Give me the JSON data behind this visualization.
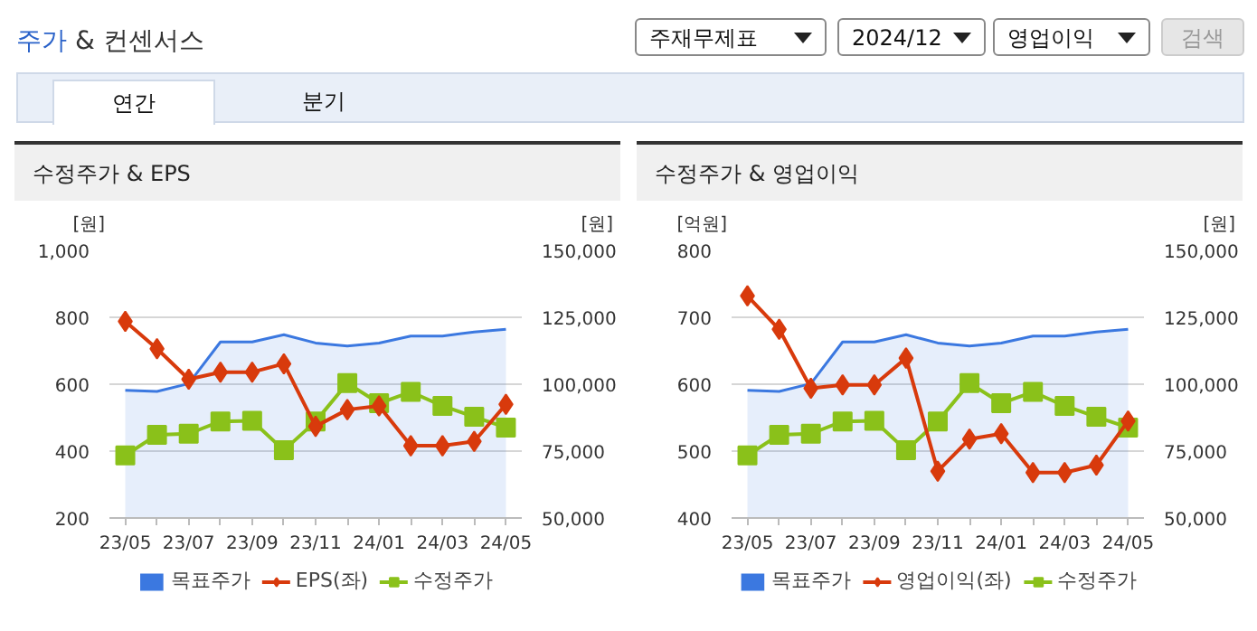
{
  "chart_data": [
    {
      "type": "other",
      "title": "주가 & 컨센서스",
      "annotations": [
        "주재무제표",
        "2024/12",
        "영업이익",
        "검색",
        "연간",
        "분기"
      ]
    },
    {
      "type": "line",
      "title": "수정주가 & EPS",
      "ylabel": "[원]",
      "y2label": "[원]",
      "categories": [
        "23/05",
        null,
        "23/07",
        null,
        "23/09",
        null,
        "23/11",
        null,
        "24/01",
        null,
        "24/03",
        null,
        "24/05"
      ],
      "ylim": [
        200,
        1000
      ],
      "yticks": [
        200,
        400,
        600,
        800,
        {
          "value": 1000,
          "label": "1,000"
        }
      ],
      "y2lim": [
        50000,
        150000
      ],
      "y2ticks": [
        {
          "value": 50000,
          "label": "50,000"
        },
        {
          "value": 75000,
          "label": "75,000"
        },
        {
          "value": 100000,
          "label": "100,000"
        },
        {
          "value": 125000,
          "label": "125,000"
        },
        {
          "value": 150000,
          "label": "150,000"
        }
      ],
      "grid": "y",
      "legend": "bottom",
      "series": [
        {
          "name": "목표주가",
          "type": "area",
          "axis": "y2",
          "color": "#3b78e0",
          "values": [
            97700,
            97300,
            100200,
            115800,
            115800,
            118500,
            115400,
            114300,
            115400,
            118000,
            118000,
            119500,
            120500
          ]
        },
        {
          "name": "EPS(좌)",
          "type": "line",
          "marker": "diamond",
          "color": "#d83a0c",
          "values": [
            788,
            706,
            615,
            636,
            636,
            661,
            474,
            524,
            535,
            416,
            416,
            429,
            540
          ]
        },
        {
          "name": "수정주가",
          "type": "line",
          "axis": "y2",
          "marker": "square",
          "color": "#8ac11a",
          "values": [
            73400,
            81100,
            81500,
            86100,
            86300,
            75300,
            86100,
            100400,
            92900,
            97100,
            91900,
            87800,
            83800
          ]
        }
      ]
    },
    {
      "type": "line",
      "title": "수정주가 & 영업이익",
      "ylabel": "[억원]",
      "y2label": "[원]",
      "categories": [
        "23/05",
        null,
        "23/07",
        null,
        "23/09",
        null,
        "23/11",
        null,
        "24/01",
        null,
        "24/03",
        null,
        "24/05"
      ],
      "ylim": [
        400,
        800
      ],
      "yticks": [
        400,
        500,
        600,
        700,
        800
      ],
      "y2lim": [
        50000,
        150000
      ],
      "y2ticks": [
        {
          "value": 50000,
          "label": "50,000"
        },
        {
          "value": 75000,
          "label": "75,000"
        },
        {
          "value": 100000,
          "label": "100,000"
        },
        {
          "value": 125000,
          "label": "125,000"
        },
        {
          "value": 150000,
          "label": "150,000"
        }
      ],
      "grid": "y",
      "legend": "bottom",
      "series": [
        {
          "name": "목표주가",
          "type": "area",
          "axis": "y2",
          "color": "#3b78e0",
          "values": [
            97700,
            97300,
            100200,
            115800,
            115800,
            118500,
            115400,
            114300,
            115400,
            118000,
            118000,
            119500,
            120500
          ]
        },
        {
          "name": "영업이익(좌)",
          "type": "line",
          "marker": "diamond",
          "color": "#d83a0c",
          "values": [
            732,
            682,
            594,
            599,
            599,
            639,
            470,
            518,
            526,
            468,
            468,
            479,
            545
          ]
        },
        {
          "name": "수정주가",
          "type": "line",
          "axis": "y2",
          "marker": "square",
          "color": "#8ac11a",
          "values": [
            73400,
            81100,
            81500,
            86100,
            86300,
            75300,
            86100,
            100400,
            92900,
            97100,
            91900,
            87800,
            83800
          ]
        }
      ]
    }
  ]
}
